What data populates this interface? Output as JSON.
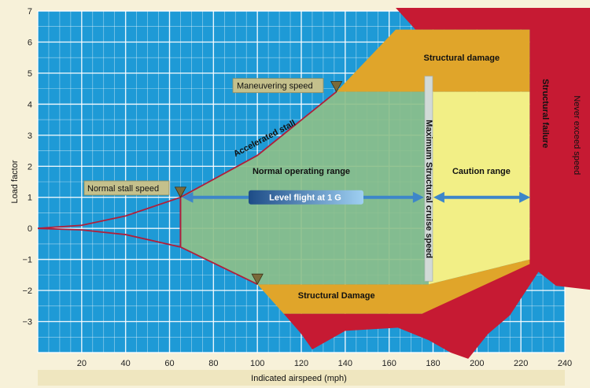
{
  "chart_data": {
    "type": "area",
    "xlabel": "Indicated airspeed (mph)",
    "ylabel": "Load factor",
    "right_label": "Never exceed speed",
    "xlim": [
      0,
      240
    ],
    "ylim": [
      -4,
      7
    ],
    "x_ticks": [
      20,
      40,
      60,
      80,
      100,
      120,
      140,
      160,
      180,
      200,
      220,
      240
    ],
    "y_ticks": [
      7,
      6,
      5,
      4,
      3,
      2,
      1,
      0,
      -1,
      -2,
      -3
    ],
    "grid": true,
    "curves": {
      "positive_stall": {
        "label": "Accelerated stall",
        "x": [
          0,
          20,
          40,
          65,
          100,
          136
        ],
        "y": [
          0,
          0.1,
          0.4,
          1.0,
          2.35,
          4.4
        ]
      },
      "negative_stall": {
        "x": [
          0,
          20,
          40,
          65,
          100
        ],
        "y": [
          0,
          -0.05,
          -0.2,
          -0.6,
          -1.8
        ]
      }
    },
    "regions": [
      {
        "name": "Normal operating range",
        "x_range": [
          65,
          178
        ],
        "y_range": [
          -1.8,
          4.4
        ]
      },
      {
        "name": "Caution range",
        "x_range": [
          178,
          225
        ],
        "y_range": [
          -1,
          4.4
        ]
      },
      {
        "name": "Structural damage",
        "y_above": 4.4
      },
      {
        "name": "Structural Damage",
        "y_below": -1.8
      },
      {
        "name": "Structural failure",
        "x_from": 225
      }
    ],
    "reference_speeds": [
      {
        "label": "Normal stall speed",
        "x": 65,
        "y": 1
      },
      {
        "label": "Maneuvering speed",
        "x": 136,
        "y": 4.4
      },
      {
        "label": "Maximum Structural cruise speed",
        "x": 178
      },
      {
        "label": "Never exceed speed",
        "x": 225
      }
    ],
    "level_flight": {
      "label": "Level flight at 1 G",
      "y": 1,
      "x_range": [
        65,
        225
      ]
    },
    "colors": {
      "grid_bg": "#1e9ad6",
      "grid_line": "#ffffff",
      "normal": "#8cbf8a",
      "caution": "#f2ef86",
      "damage": "#e0a52a",
      "failure": "#c61a33",
      "curve": "#b01f3a",
      "arrow": "#3d86c9"
    }
  }
}
